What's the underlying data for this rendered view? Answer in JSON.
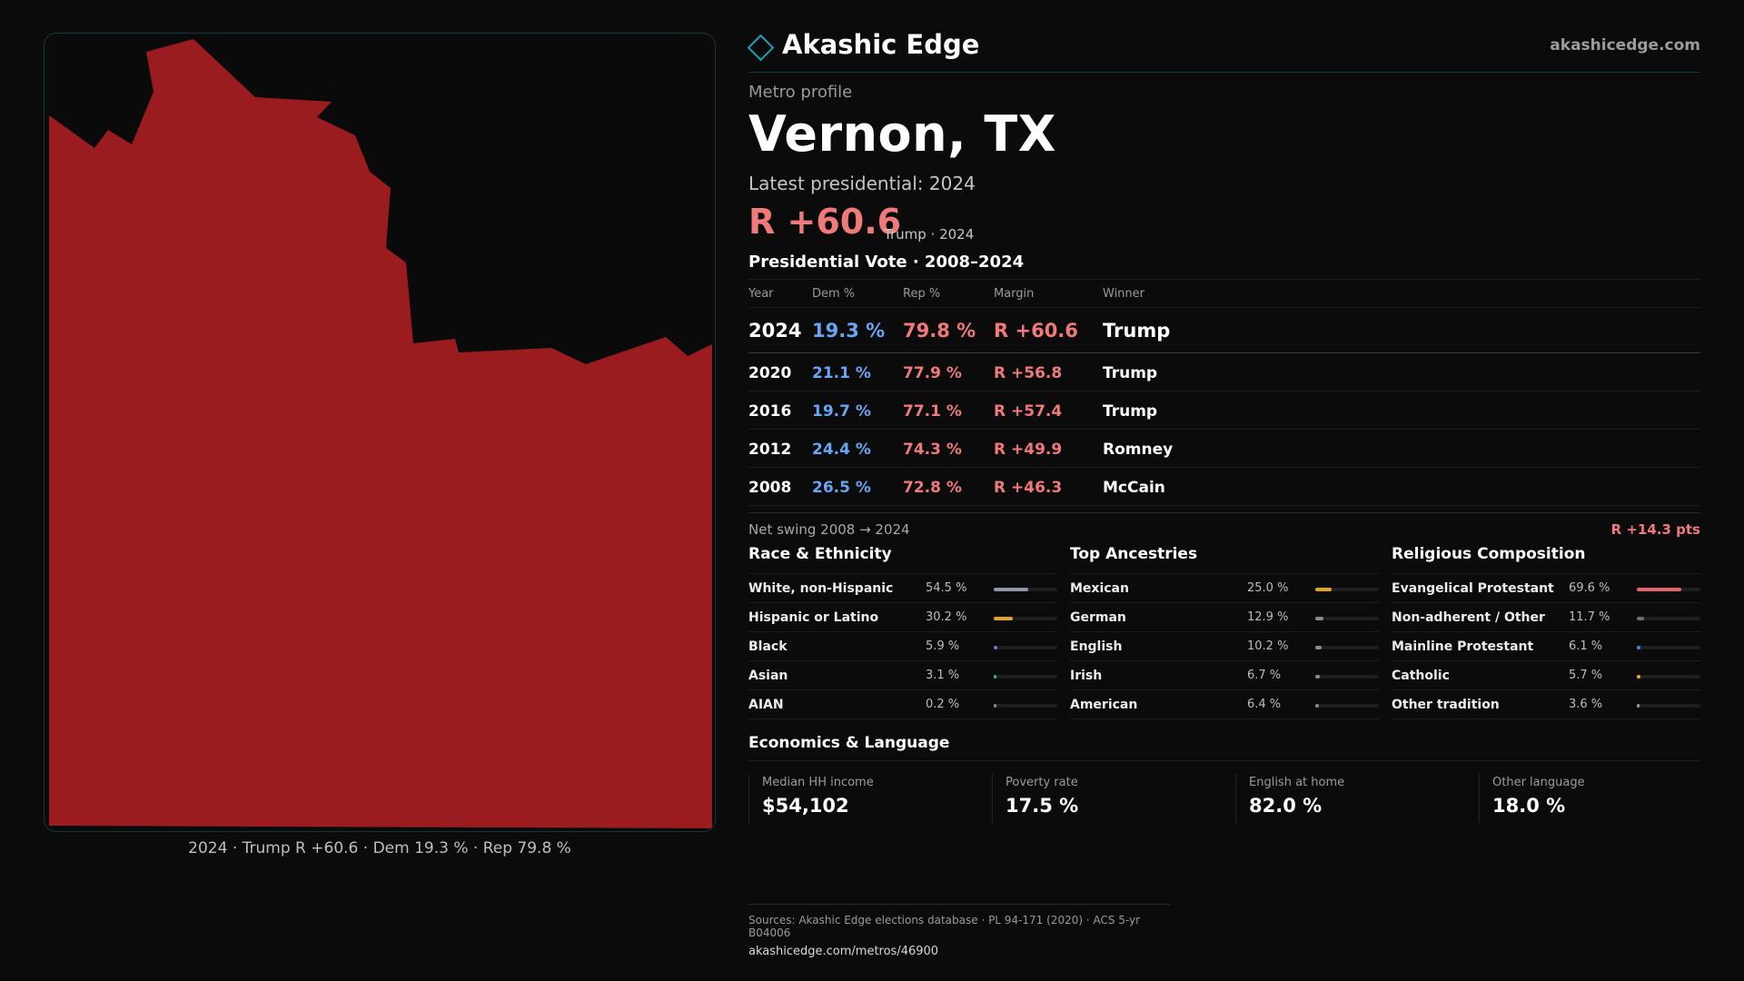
{
  "brand": {
    "name": "Akashic Edge",
    "url": "akashicedge.com",
    "accent": "#1aa3b4"
  },
  "profile": {
    "kicker": "Metro profile",
    "title": "Vernon, TX",
    "latest_label": "Latest presidential: 2024",
    "margin": "R +60.6",
    "margin_sub": "Trump · 2024"
  },
  "map": {
    "fill_color": "#9b1c1f",
    "caption": "2024 · Trump R +60.6 · Dem 19.3 % · Rep 79.8 %"
  },
  "vote_table": {
    "title": "Presidential Vote · 2008–2024",
    "headers": {
      "year": "Year",
      "dem": "Dem %",
      "rep": "Rep %",
      "margin": "Margin",
      "winner": "Winner"
    },
    "rows": [
      {
        "year": "2024",
        "dem": "19.3 %",
        "rep": "79.8 %",
        "margin": "R +60.6",
        "winner": "Trump"
      },
      {
        "year": "2020",
        "dem": "21.1 %",
        "rep": "77.9 %",
        "margin": "R +56.8",
        "winner": "Trump"
      },
      {
        "year": "2016",
        "dem": "19.7 %",
        "rep": "77.1 %",
        "margin": "R +57.4",
        "winner": "Trump"
      },
      {
        "year": "2012",
        "dem": "24.4 %",
        "rep": "74.3 %",
        "margin": "R +49.9",
        "winner": "Romney"
      },
      {
        "year": "2008",
        "dem": "26.5 %",
        "rep": "72.8 %",
        "margin": "R +46.3",
        "winner": "McCain"
      }
    ]
  },
  "swing": {
    "label": "Net swing 2008 → 2024",
    "value": "R +14.3 pts"
  },
  "demographics": {
    "race": {
      "title": "Race & Ethnicity",
      "rows": [
        {
          "label": "White, non-Hispanic",
          "value": "54.5 %",
          "pct": 54.5,
          "color": "#8d99aa"
        },
        {
          "label": "Hispanic or Latino",
          "value": "30.2 %",
          "pct": 30.2,
          "color": "#e0a526"
        },
        {
          "label": "Black",
          "value": "5.9 %",
          "pct": 5.9,
          "color": "#7b6cf0"
        },
        {
          "label": "Asian",
          "value": "3.1 %",
          "pct": 3.1,
          "color": "#2fbf8a"
        },
        {
          "label": "AIAN",
          "value": "0.2 %",
          "pct": 0.2,
          "color": "#888888"
        }
      ]
    },
    "ancestry": {
      "title": "Top Ancestries",
      "rows": [
        {
          "label": "Mexican",
          "value": "25.0 %",
          "pct": 25.0,
          "color": "#e0a526"
        },
        {
          "label": "German",
          "value": "12.9 %",
          "pct": 12.9,
          "color": "#8a8a8a"
        },
        {
          "label": "English",
          "value": "10.2 %",
          "pct": 10.2,
          "color": "#8a8a8a"
        },
        {
          "label": "Irish",
          "value": "6.7 %",
          "pct": 6.7,
          "color": "#8a8a8a"
        },
        {
          "label": "American",
          "value": "6.4 %",
          "pct": 6.4,
          "color": "#8a8a8a"
        }
      ]
    },
    "religion": {
      "title": "Religious Composition",
      "rows": [
        {
          "label": "Evangelical Protestant",
          "value": "69.6 %",
          "pct": 69.6,
          "color": "#e8646b"
        },
        {
          "label": "Non-adherent / Other",
          "value": "11.7 %",
          "pct": 11.7,
          "color": "#6e6e6e"
        },
        {
          "label": "Mainline Protestant",
          "value": "6.1 %",
          "pct": 6.1,
          "color": "#4d86e6"
        },
        {
          "label": "Catholic",
          "value": "5.7 %",
          "pct": 5.7,
          "color": "#e0b526"
        },
        {
          "label": "Other tradition",
          "value": "3.6 %",
          "pct": 3.6,
          "color": "#9a9a9a"
        }
      ]
    }
  },
  "economics": {
    "title": "Economics & Language",
    "cells": [
      {
        "label": "Median HH income",
        "value": "$54,102"
      },
      {
        "label": "Poverty rate",
        "value": "17.5 %"
      },
      {
        "label": "English at home",
        "value": "82.0 %"
      },
      {
        "label": "Other language",
        "value": "18.0 %"
      }
    ]
  },
  "sources": {
    "line1": "Sources: Akashic Edge elections database · PL 94-171 (2020) · ACS 5-yr B04006",
    "line2": "akashicedge.com/metros/46900"
  }
}
